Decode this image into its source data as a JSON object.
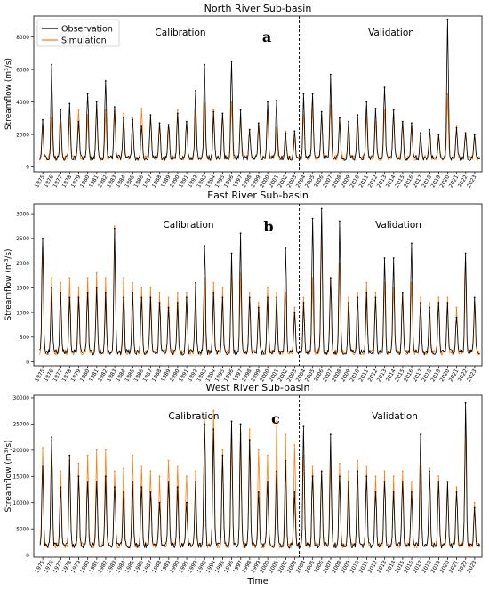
{
  "figure": {
    "xlabel": "Time",
    "ylabel": "Streamflow (m³/s)",
    "legend": {
      "placement": "top-left",
      "entries": [
        "Observation",
        "Simulation"
      ]
    },
    "colors": {
      "observation": "#000000",
      "simulation": "#ff7f0e",
      "split_line": "#000000"
    },
    "years": [
      "1975",
      "1976",
      "1977",
      "1978",
      "1979",
      "1980",
      "1981",
      "1982",
      "1983",
      "1984",
      "1985",
      "1986",
      "1987",
      "1988",
      "1989",
      "1990",
      "1991",
      "1992",
      "1993",
      "1994",
      "1995",
      "1996",
      "1997",
      "1998",
      "1999",
      "2000",
      "2001",
      "2002",
      "2003",
      "2004",
      "2005",
      "2006",
      "2007",
      "2008",
      "2009",
      "2010",
      "2011",
      "2012",
      "2013",
      "2014",
      "2015",
      "2016",
      "2017",
      "2018",
      "2019",
      "2020",
      "2021",
      "2022",
      "2023"
    ]
  },
  "chart_data": [
    {
      "type": "line",
      "title": "North River Sub-basin",
      "panel_letter": "a",
      "period_labels": [
        "Calibration",
        "Validation"
      ],
      "split_year": 2003.5,
      "xlim": [
        1974,
        2023.8
      ],
      "ylim": [
        -300,
        9300
      ],
      "yticks": [
        0,
        2000,
        4000,
        6000,
        8000
      ],
      "grid": false,
      "series": [
        {
          "name": "Observation",
          "x": [
            1975,
            1976,
            1977,
            1978,
            1979,
            1980,
            1981,
            1982,
            1983,
            1984,
            1985,
            1986,
            1987,
            1988,
            1989,
            1990,
            1991,
            1992,
            1993,
            1994,
            1995,
            1996,
            1997,
            1998,
            1999,
            2000,
            2001,
            2002,
            2003,
            2004,
            2005,
            2006,
            2007,
            2008,
            2009,
            2010,
            2011,
            2012,
            2013,
            2014,
            2015,
            2016,
            2017,
            2018,
            2019,
            2020,
            2021,
            2022,
            2023
          ],
          "values": [
            2900,
            6300,
            3500,
            3900,
            2800,
            4500,
            4000,
            5300,
            3700,
            3000,
            2900,
            2500,
            3200,
            2700,
            2600,
            3300,
            2800,
            4700,
            6300,
            3400,
            3300,
            6500,
            3500,
            2300,
            2700,
            4000,
            4100,
            2100,
            2200,
            4500,
            4500,
            3400,
            5700,
            3000,
            2800,
            3200,
            4000,
            3600,
            4900,
            3500,
            2800,
            2700,
            2100,
            2300,
            2000,
            9100,
            2400,
            2100,
            2000
          ]
        },
        {
          "name": "Simulation",
          "x": [
            1975,
            1976,
            1977,
            1978,
            1979,
            1980,
            1981,
            1982,
            1983,
            1984,
            1985,
            1986,
            1987,
            1988,
            1989,
            1990,
            1991,
            1992,
            1993,
            1994,
            1995,
            1996,
            1997,
            1998,
            1999,
            2000,
            2001,
            2002,
            2003,
            2004,
            2005,
            2006,
            2007,
            2008,
            2009,
            2010,
            2011,
            2012,
            2013,
            2014,
            2015,
            2016,
            2017,
            2018,
            2019,
            2020,
            2021,
            2022,
            2023
          ],
          "values": [
            2400,
            3000,
            2700,
            3000,
            3500,
            3200,
            3800,
            3500,
            3400,
            3300,
            3000,
            3600,
            3000,
            2600,
            2400,
            3500,
            2600,
            3600,
            3900,
            3500,
            3200,
            4000,
            3000,
            2300,
            2500,
            3300,
            2400,
            2200,
            1700,
            3200,
            3600,
            3200,
            3800,
            3000,
            2600,
            2700,
            3300,
            2800,
            3500,
            3200,
            2700,
            2500,
            2100,
            2000,
            1800,
            4500,
            2500,
            1900,
            2000
          ]
        }
      ]
    },
    {
      "type": "line",
      "title": "East River Sub-basin",
      "panel_letter": "b",
      "period_labels": [
        "Calibration",
        "Validation"
      ],
      "split_year": 2003.5,
      "xlim": [
        1974,
        2023.8
      ],
      "ylim": [
        -80,
        3200
      ],
      "yticks": [
        0,
        500,
        1000,
        1500,
        2000,
        2500,
        3000
      ],
      "grid": false,
      "series": [
        {
          "name": "Observation",
          "x": [
            1975,
            1976,
            1977,
            1978,
            1979,
            1980,
            1981,
            1982,
            1983,
            1984,
            1985,
            1986,
            1987,
            1988,
            1989,
            1990,
            1991,
            1992,
            1993,
            1994,
            1995,
            1996,
            1997,
            1998,
            1999,
            2000,
            2001,
            2002,
            2003,
            2004,
            2005,
            2006,
            2007,
            2008,
            2009,
            2010,
            2011,
            2012,
            2013,
            2014,
            2015,
            2016,
            2017,
            2018,
            2019,
            2020,
            2021,
            2022,
            2023
          ],
          "values": [
            2500,
            1500,
            1400,
            1300,
            1300,
            1400,
            1500,
            1400,
            2700,
            1300,
            1400,
            1300,
            1300,
            1200,
            1100,
            1200,
            1300,
            1600,
            2350,
            1400,
            1300,
            2200,
            2600,
            1300,
            1100,
            1300,
            1300,
            2300,
            1000,
            1200,
            2900,
            3100,
            1700,
            2850,
            1200,
            1300,
            1400,
            1300,
            2100,
            2100,
            1400,
            2400,
            1200,
            1100,
            1200,
            1200,
            900,
            2200,
            1300
          ]
        },
        {
          "name": "Simulation",
          "x": [
            1975,
            1976,
            1977,
            1978,
            1979,
            1980,
            1981,
            1982,
            1983,
            1984,
            1985,
            1986,
            1987,
            1988,
            1989,
            1990,
            1991,
            1992,
            1993,
            1994,
            1995,
            1996,
            1997,
            1998,
            1999,
            2000,
            2001,
            2002,
            2003,
            2004,
            2005,
            2006,
            2007,
            2008,
            2009,
            2010,
            2011,
            2012,
            2013,
            2014,
            2015,
            2016,
            2017,
            2018,
            2019,
            2020,
            2021,
            2022,
            2023
          ],
          "values": [
            2300,
            1700,
            1600,
            1700,
            1500,
            1700,
            1800,
            1700,
            2750,
            1700,
            1600,
            1500,
            1500,
            1400,
            1300,
            1400,
            1400,
            1500,
            1700,
            1600,
            1500,
            1700,
            1800,
            1400,
            1200,
            1500,
            1400,
            1400,
            1100,
            1300,
            1700,
            2500,
            1700,
            2000,
            1300,
            1400,
            1600,
            1400,
            1600,
            1500,
            1400,
            1600,
            1300,
            1200,
            1300,
            1300,
            1100,
            2000,
            1200
          ]
        }
      ]
    },
    {
      "type": "line",
      "title": "West River Sub-basin",
      "panel_letter": "c",
      "period_labels": [
        "Calibration",
        "Validation"
      ],
      "split_year": 2003.5,
      "xlim": [
        1974,
        2023.8
      ],
      "ylim": [
        -400,
        30500
      ],
      "yticks": [
        0,
        5000,
        10000,
        15000,
        20000,
        25000,
        30000
      ],
      "grid": false,
      "series": [
        {
          "name": "Observation",
          "x": [
            1975,
            1976,
            1977,
            1978,
            1979,
            1980,
            1981,
            1982,
            1983,
            1984,
            1985,
            1986,
            1987,
            1988,
            1989,
            1990,
            1991,
            1992,
            1993,
            1994,
            1995,
            1996,
            1997,
            1998,
            1999,
            2000,
            2001,
            2002,
            2003,
            2004,
            2005,
            2006,
            2007,
            2008,
            2009,
            2010,
            2011,
            2012,
            2013,
            2014,
            2015,
            2016,
            2017,
            2018,
            2019,
            2020,
            2021,
            2022,
            2023
          ],
          "values": [
            17000,
            22500,
            13000,
            19000,
            15000,
            14000,
            14000,
            15000,
            13000,
            12000,
            14000,
            13000,
            12000,
            10000,
            14000,
            13000,
            10000,
            14000,
            25000,
            24000,
            19000,
            25500,
            25000,
            22000,
            12000,
            14000,
            16000,
            18000,
            12000,
            24500,
            15000,
            16000,
            23000,
            15000,
            14000,
            16000,
            15000,
            12000,
            14000,
            12000,
            14000,
            12000,
            23000,
            16000,
            14000,
            14000,
            12000,
            29000,
            9000
          ]
        },
        {
          "name": "Simulation",
          "x": [
            1975,
            1976,
            1977,
            1978,
            1979,
            1980,
            1981,
            1982,
            1983,
            1984,
            1985,
            1986,
            1987,
            1988,
            1989,
            1990,
            1991,
            1992,
            1993,
            1994,
            1995,
            1996,
            1997,
            1998,
            1999,
            2000,
            2001,
            2002,
            2003,
            2004,
            2005,
            2006,
            2007,
            2008,
            2009,
            2010,
            2011,
            2012,
            2013,
            2014,
            2015,
            2016,
            2017,
            2018,
            2019,
            2020,
            2021,
            2022,
            2023
          ],
          "values": [
            20500,
            22000,
            16000,
            18000,
            17500,
            19000,
            20000,
            20000,
            16000,
            16500,
            19000,
            17000,
            16000,
            15000,
            18000,
            17000,
            15000,
            16000,
            26000,
            27500,
            20000,
            22000,
            23000,
            24000,
            20000,
            19000,
            25500,
            23000,
            21000,
            19000,
            17000,
            16000,
            18000,
            17500,
            16000,
            18000,
            17000,
            15000,
            16000,
            15000,
            16000,
            14000,
            17000,
            16500,
            15000,
            14000,
            13000,
            25000,
            10000
          ]
        }
      ]
    }
  ]
}
